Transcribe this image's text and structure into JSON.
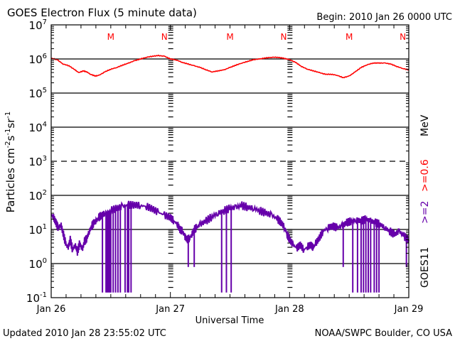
{
  "chart_data": {
    "type": "line",
    "title": "GOES Electron Flux (5 minute data)",
    "begin_label": "Begin: 2010 Jan 26 0000 UTC",
    "xlabel": "Universal Time",
    "ylabel": "Particles cm⁻²s⁻¹sr⁻¹",
    "ylabel_parts": {
      "base": "Particles cm",
      "sup1": "-2",
      "mid1": "s",
      "sup2": "-1",
      "mid2": "sr",
      "sup3": "-1"
    },
    "yscale": "log",
    "ylim_exponents": [
      -1,
      7
    ],
    "y_ticks": [
      {
        "base": "10",
        "exp": "7"
      },
      {
        "base": "10",
        "exp": "6"
      },
      {
        "base": "10",
        "exp": "5"
      },
      {
        "base": "10",
        "exp": "4"
      },
      {
        "base": "10",
        "exp": "3"
      },
      {
        "base": "10",
        "exp": "2"
      },
      {
        "base": "10",
        "exp": "1"
      },
      {
        "base": "10",
        "exp": "0"
      },
      {
        "base": "10",
        "exp": "-1"
      }
    ],
    "x_ticks": [
      "Jan 26",
      "Jan 27",
      "Jan 28",
      "Jan 29"
    ],
    "xlim_days": [
      0,
      3
    ],
    "gridlines_exponents": [
      6,
      5,
      4,
      2,
      1,
      0
    ],
    "dashed_gridline_exponent": 3,
    "markers": [
      {
        "label": "M",
        "day": 0.5
      },
      {
        "label": "N",
        "day": 0.95
      },
      {
        "label": "M",
        "day": 1.5
      },
      {
        "label": "N",
        "day": 1.95
      },
      {
        "label": "M",
        "day": 2.5
      },
      {
        "label": "N",
        "day": 2.95
      }
    ],
    "marker_color": "#ff0000",
    "right_labels": {
      "satellite": "GOES11",
      "series_2mev": ">=2",
      "series_06mev": ">=0.6",
      "unit": "MeV"
    },
    "series": [
      {
        "name": ">=0.6 MeV",
        "color": "#ff0000",
        "points_day_log10": [
          [
            0.0,
            6.02
          ],
          [
            0.05,
            5.98
          ],
          [
            0.1,
            5.85
          ],
          [
            0.15,
            5.8
          ],
          [
            0.2,
            5.68
          ],
          [
            0.23,
            5.6
          ],
          [
            0.27,
            5.65
          ],
          [
            0.3,
            5.62
          ],
          [
            0.33,
            5.55
          ],
          [
            0.37,
            5.5
          ],
          [
            0.4,
            5.52
          ],
          [
            0.45,
            5.62
          ],
          [
            0.5,
            5.7
          ],
          [
            0.55,
            5.75
          ],
          [
            0.6,
            5.82
          ],
          [
            0.65,
            5.88
          ],
          [
            0.7,
            5.95
          ],
          [
            0.75,
            6.0
          ],
          [
            0.8,
            6.05
          ],
          [
            0.85,
            6.08
          ],
          [
            0.9,
            6.1
          ],
          [
            0.95,
            6.08
          ],
          [
            1.0,
            6.0
          ],
          [
            1.05,
            5.97
          ],
          [
            1.1,
            5.9
          ],
          [
            1.15,
            5.85
          ],
          [
            1.2,
            5.8
          ],
          [
            1.25,
            5.75
          ],
          [
            1.3,
            5.68
          ],
          [
            1.35,
            5.62
          ],
          [
            1.4,
            5.65
          ],
          [
            1.45,
            5.68
          ],
          [
            1.5,
            5.75
          ],
          [
            1.55,
            5.82
          ],
          [
            1.6,
            5.88
          ],
          [
            1.65,
            5.93
          ],
          [
            1.7,
            5.98
          ],
          [
            1.75,
            6.0
          ],
          [
            1.8,
            6.03
          ],
          [
            1.85,
            6.05
          ],
          [
            1.9,
            6.05
          ],
          [
            1.95,
            6.02
          ],
          [
            2.0,
            5.98
          ],
          [
            2.05,
            5.9
          ],
          [
            2.1,
            5.78
          ],
          [
            2.15,
            5.7
          ],
          [
            2.2,
            5.65
          ],
          [
            2.25,
            5.6
          ],
          [
            2.3,
            5.55
          ],
          [
            2.35,
            5.55
          ],
          [
            2.4,
            5.52
          ],
          [
            2.45,
            5.45
          ],
          [
            2.5,
            5.5
          ],
          [
            2.55,
            5.62
          ],
          [
            2.6,
            5.75
          ],
          [
            2.65,
            5.83
          ],
          [
            2.7,
            5.88
          ],
          [
            2.75,
            5.88
          ],
          [
            2.8,
            5.88
          ],
          [
            2.85,
            5.85
          ],
          [
            2.9,
            5.78
          ],
          [
            2.95,
            5.72
          ],
          [
            3.0,
            5.68
          ]
        ]
      },
      {
        "name": ">=2 MeV",
        "color": "#6600aa",
        "points_day_log10": [
          [
            0.0,
            1.45
          ],
          [
            0.02,
            1.35
          ],
          [
            0.04,
            1.2
          ],
          [
            0.06,
            1.05
          ],
          [
            0.08,
            1.15
          ],
          [
            0.1,
            0.9
          ],
          [
            0.12,
            0.6
          ],
          [
            0.14,
            0.45
          ],
          [
            0.16,
            0.7
          ],
          [
            0.18,
            0.4
          ],
          [
            0.2,
            0.55
          ],
          [
            0.22,
            0.35
          ],
          [
            0.24,
            0.6
          ],
          [
            0.26,
            0.4
          ],
          [
            0.28,
            0.65
          ],
          [
            0.3,
            0.75
          ],
          [
            0.32,
            0.95
          ],
          [
            0.34,
            1.1
          ],
          [
            0.36,
            1.2
          ],
          [
            0.38,
            1.25
          ],
          [
            0.4,
            1.35
          ],
          [
            0.42,
            1.42
          ],
          [
            0.45,
            1.48
          ],
          [
            0.5,
            1.55
          ],
          [
            0.55,
            1.62
          ],
          [
            0.6,
            1.68
          ],
          [
            0.65,
            1.72
          ],
          [
            0.7,
            1.72
          ],
          [
            0.75,
            1.7
          ],
          [
            0.8,
            1.68
          ],
          [
            0.85,
            1.6
          ],
          [
            0.9,
            1.5
          ],
          [
            0.95,
            1.42
          ],
          [
            1.0,
            1.35
          ],
          [
            1.03,
            1.25
          ],
          [
            1.06,
            1.15
          ],
          [
            1.08,
            1.0
          ],
          [
            1.1,
            0.95
          ],
          [
            1.12,
            0.8
          ],
          [
            1.14,
            0.7
          ],
          [
            1.16,
            0.75
          ],
          [
            1.18,
            0.85
          ],
          [
            1.2,
            1.0
          ],
          [
            1.22,
            1.05
          ],
          [
            1.25,
            1.15
          ],
          [
            1.3,
            1.25
          ],
          [
            1.35,
            1.38
          ],
          [
            1.4,
            1.48
          ],
          [
            1.45,
            1.55
          ],
          [
            1.5,
            1.62
          ],
          [
            1.55,
            1.65
          ],
          [
            1.6,
            1.7
          ],
          [
            1.65,
            1.65
          ],
          [
            1.7,
            1.62
          ],
          [
            1.75,
            1.55
          ],
          [
            1.8,
            1.48
          ],
          [
            1.85,
            1.42
          ],
          [
            1.9,
            1.3
          ],
          [
            1.93,
            1.2
          ],
          [
            1.96,
            1.05
          ],
          [
            1.98,
            0.85
          ],
          [
            2.0,
            0.7
          ],
          [
            2.03,
            0.55
          ],
          [
            2.06,
            0.45
          ],
          [
            2.09,
            0.55
          ],
          [
            2.12,
            0.4
          ],
          [
            2.15,
            0.5
          ],
          [
            2.18,
            0.55
          ],
          [
            2.2,
            0.45
          ],
          [
            2.22,
            0.6
          ],
          [
            2.25,
            0.75
          ],
          [
            2.28,
            0.95
          ],
          [
            2.32,
            1.05
          ],
          [
            2.36,
            1.1
          ],
          [
            2.4,
            1.05
          ],
          [
            2.44,
            1.1
          ],
          [
            2.48,
            1.2
          ],
          [
            2.52,
            1.25
          ],
          [
            2.56,
            1.28
          ],
          [
            2.6,
            1.25
          ],
          [
            2.64,
            1.3
          ],
          [
            2.68,
            1.25
          ],
          [
            2.72,
            1.2
          ],
          [
            2.76,
            1.15
          ],
          [
            2.8,
            1.05
          ],
          [
            2.84,
            0.95
          ],
          [
            2.88,
            0.85
          ],
          [
            2.92,
            0.95
          ],
          [
            2.96,
            0.8
          ],
          [
            3.0,
            0.7
          ]
        ],
        "dropouts_day": [
          0.43,
          0.46,
          0.47,
          0.48,
          0.49,
          0.5,
          0.52,
          0.54,
          0.56,
          0.58,
          0.62,
          0.64,
          0.65,
          0.67,
          1.43,
          1.47,
          1.51,
          2.53,
          2.57,
          2.6,
          2.62,
          2.64,
          2.66,
          2.68,
          2.71,
          2.73,
          2.75,
          1.15,
          1.2,
          2.45,
          2.98
        ],
        "dropout_floor_log10": -0.85
      }
    ]
  },
  "footer": {
    "updated": "Updated 2010 Jan 28 23:55:02 UTC",
    "source": "NOAA/SWPC Boulder, CO USA"
  }
}
